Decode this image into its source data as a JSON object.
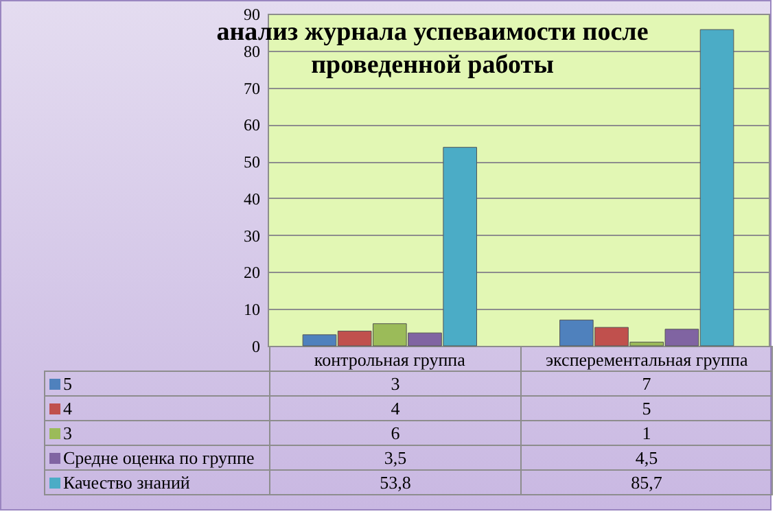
{
  "chart_data": {
    "type": "bar",
    "title": "анализ журнала успеваимости после проведенной работы",
    "categories": [
      "контрольная группа",
      "эксперементальная группа"
    ],
    "series": [
      {
        "name": "5",
        "color": "#4f81bd",
        "values": [
          3,
          7
        ],
        "value_labels": [
          "3",
          "7"
        ]
      },
      {
        "name": "4",
        "color": "#c0504d",
        "values": [
          4,
          5
        ],
        "value_labels": [
          "4",
          "5"
        ]
      },
      {
        "name": "3",
        "color": "#9bbb59",
        "values": [
          6,
          1
        ],
        "value_labels": [
          "6",
          "1"
        ]
      },
      {
        "name": "Средне  оценка по группе",
        "color": "#8064a2",
        "values": [
          3.5,
          4.5
        ],
        "value_labels": [
          "3,5",
          "4,5"
        ]
      },
      {
        "name": "Качество знаний",
        "color": "#4bacc6",
        "values": [
          53.8,
          85.7
        ],
        "value_labels": [
          "53,8",
          "85,7"
        ]
      }
    ],
    "ylim": [
      0,
      90
    ],
    "yticks": [
      0,
      10,
      20,
      30,
      40,
      50,
      60,
      70,
      80,
      90
    ],
    "grid": "y",
    "legend": "bottom left"
  }
}
